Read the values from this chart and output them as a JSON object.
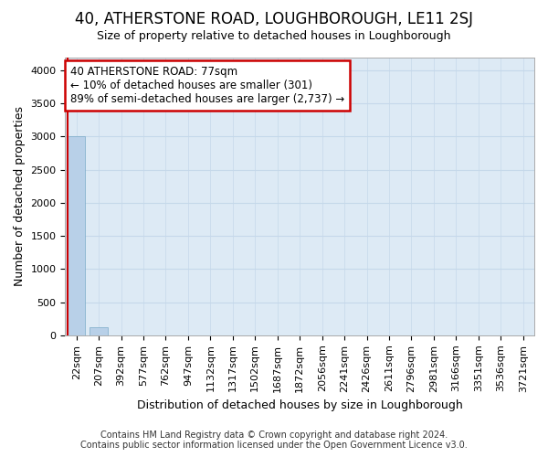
{
  "title": "40, ATHERSTONE ROAD, LOUGHBOROUGH, LE11 2SJ",
  "subtitle": "Size of property relative to detached houses in Loughborough",
  "xlabel": "Distribution of detached houses by size in Loughborough",
  "ylabel": "Number of detached properties",
  "footer_line1": "Contains HM Land Registry data © Crown copyright and database right 2024.",
  "footer_line2": "Contains public sector information licensed under the Open Government Licence v3.0.",
  "categories": [
    "22sqm",
    "207sqm",
    "392sqm",
    "577sqm",
    "762sqm",
    "947sqm",
    "1132sqm",
    "1317sqm",
    "1502sqm",
    "1687sqm",
    "1872sqm",
    "2056sqm",
    "2241sqm",
    "2426sqm",
    "2611sqm",
    "2796sqm",
    "2981sqm",
    "3166sqm",
    "3351sqm",
    "3536sqm",
    "3721sqm"
  ],
  "values": [
    3000,
    120,
    0,
    0,
    0,
    0,
    0,
    0,
    0,
    0,
    0,
    0,
    0,
    0,
    0,
    0,
    0,
    0,
    0,
    0,
    0
  ],
  "bar_color": "#b8d0e8",
  "bar_edge_color": "#7aaac8",
  "grid_color": "#c5d8ea",
  "background_color": "#ddeaf5",
  "annotation_line1": "40 ATHERSTONE ROAD: 77sqm",
  "annotation_line2": "← 10% of detached houses are smaller (301)",
  "annotation_line3": "89% of semi-detached houses are larger (2,737) →",
  "annotation_box_edge": "#cc0000",
  "red_line_color": "#cc0000",
  "red_line_x": -0.38,
  "ylim": [
    0,
    4200
  ],
  "yticks": [
    0,
    500,
    1000,
    1500,
    2000,
    2500,
    3000,
    3500,
    4000
  ],
  "title_fontsize": 12,
  "subtitle_fontsize": 9,
  "ylabel_fontsize": 9,
  "xlabel_fontsize": 9,
  "tick_fontsize": 8,
  "annot_fontsize": 8.5,
  "footer_fontsize": 7
}
